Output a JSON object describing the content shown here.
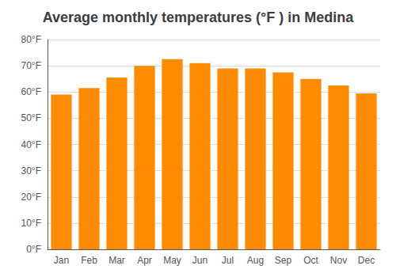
{
  "chart_data": {
    "type": "bar",
    "title": "Average monthly temperatures (°F ) in Medina",
    "categories": [
      "Jan",
      "Feb",
      "Mar",
      "Apr",
      "May",
      "Jun",
      "Jul",
      "Aug",
      "Sep",
      "Oct",
      "Nov",
      "Dec"
    ],
    "values": [
      59,
      61.5,
      65.5,
      70,
      72.5,
      71,
      69,
      69,
      67.5,
      65,
      62.5,
      59.5
    ],
    "color": "#FF8C00",
    "ylim": [
      0,
      80
    ],
    "yticks": [
      {
        "value": 0,
        "label": "0°F"
      },
      {
        "value": 10,
        "label": "10°F"
      },
      {
        "value": 20,
        "label": "20°F"
      },
      {
        "value": 30,
        "label": "30°F"
      },
      {
        "value": 40,
        "label": "40°F"
      },
      {
        "value": 50,
        "label": "50°F"
      },
      {
        "value": 60,
        "label": "60°F"
      },
      {
        "value": 70,
        "label": "70°F"
      },
      {
        "value": 80,
        "label": "80°F"
      }
    ],
    "grid": true
  }
}
